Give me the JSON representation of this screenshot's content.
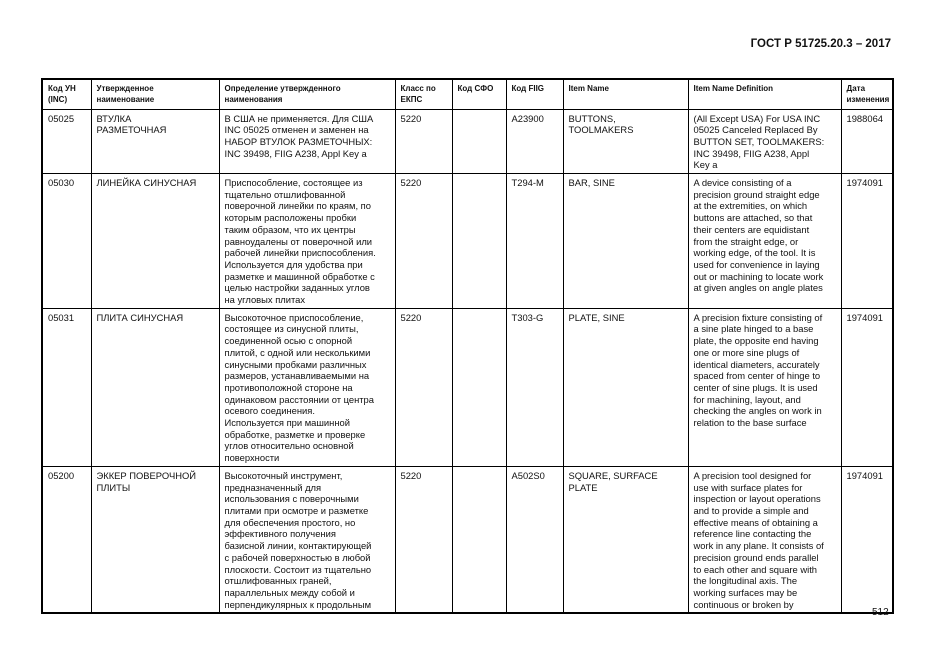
{
  "document": {
    "title": "ГОСТ Р 51725.20.3 – 2017",
    "page_number": "512"
  },
  "table": {
    "headers": [
      "Код УН\n(INC)",
      "Утвержденное\nнаименование",
      "Определение утвержденного\nнаименования",
      "Класс по\nЕКПС",
      "Код СФО",
      "Код FIIG",
      "Item Name",
      "Item Name Definition",
      "Дата\nизменения"
    ],
    "rows": [
      [
        "05025",
        "ВТУЛКА\nРАЗМЕТОЧНАЯ",
        "В США не применяется. Для США\nINC 05025 отменен и заменен на\nНАБОР ВТУЛОК РАЗМЕТОЧНЫХ:\nINC 39498, FIIG A238, Appl Key a",
        "5220",
        "",
        "A23900",
        "BUTTONS,\nTOOLMAKERS",
        "(All Except USA) For USA INC\n05025 Canceled Replaced By\nBUTTON SET, TOOLMAKERS:\nINC 39498, FIIG A238, Appl\nKey a",
        "1988064"
      ],
      [
        "05030",
        "ЛИНЕЙКА СИНУСНАЯ",
        "Приспособление, состоящее из\nтщательно отшлифованной\nповерочной линейки по краям, по\nкоторым расположены пробки\nтаким образом, что их центры\nравноудалены от поверочной или\nрабочей линейки приспособления.\nИспользуется для удобства при\nразметке и машинной обработке с\nцелью настройки заданных углов\nна угловых плитах",
        "5220",
        "",
        "T294-M",
        "BAR, SINE",
        "A device consisting of a\nprecision ground straight edge\nat the extremities, on which\nbuttons are attached, so that\ntheir centers are equidistant\nfrom the straight edge, or\nworking edge, of the tool. It is\nused for convenience in laying\nout or machining to locate work\nat given angles on angle plates",
        "1974091"
      ],
      [
        "05031",
        "ПЛИТА СИНУСНАЯ",
        "Высокоточное приспособление,\nсостоящее из синусной плиты,\nсоединенной осью с опорной\nплитой, с одной или несколькими\nсинусными пробками различных\nразмеров, устанавливаемыми на\nпротивоположной стороне на\nодинаковом расстоянии от центра\nосевого соединения.\nИспользуется при машинной\nобработке, разметке и проверке\nуглов относительно основной\nповерхности",
        "5220",
        "",
        "T303-G",
        "PLATE, SINE",
        "A precision fixture consisting of\na sine plate hinged to a base\nplate, the opposite end having\none or more sine plugs of\nidentical diameters, accurately\nspaced from center of hinge to\ncenter of sine plugs. It is used\nfor machining, layout, and\nchecking the angles on work in\nrelation to the base surface",
        "1974091"
      ],
      [
        "05200",
        "ЭККЕР ПОВЕРОЧНОЙ\nПЛИТЫ",
        "Высокоточный инструмент,\nпредназначенный для\nиспользования с поверочными\nплитами при осмотре и разметке\nдля обеспечения простого, но\nэффективного получения\nбазисной линии, контактирующей\nс рабочей поверхностью в любой\nплоскости. Состоит из тщательно\nотшлифованных граней,\nпараллельных между собой и\nперпендикулярных к продольным",
        "5220",
        "",
        "A502S0",
        "SQUARE, SURFACE\nPLATE",
        "A precision tool designed for\nuse with surface plates for\ninspection or layout operations\nand to provide a simple and\neffective means of obtaining a\nreference line contacting the\nwork in any plane. It consists of\nprecision ground ends parallel\nto each other and square with\nthe longitudinal axis. The\nworking surfaces may be\ncontinuous or broken by",
        "1974091"
      ]
    ]
  }
}
